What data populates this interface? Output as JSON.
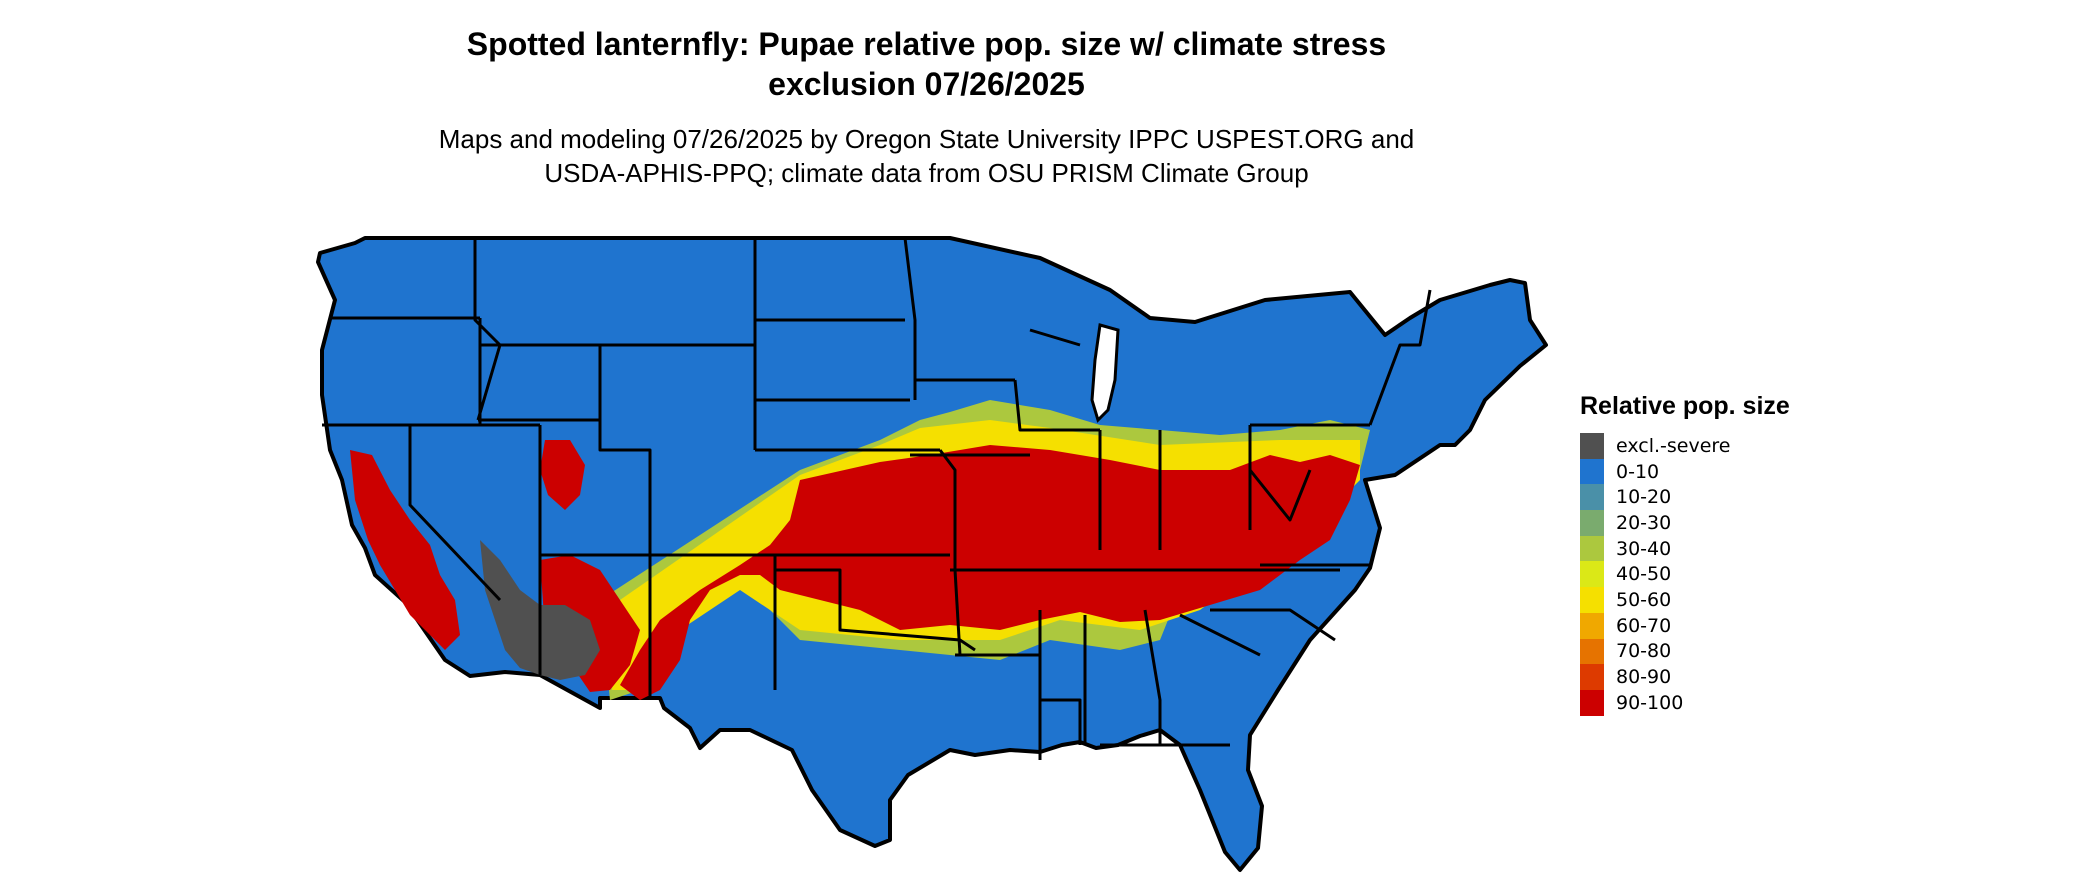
{
  "title_line1": "Spotted lanternfly: Pupae relative pop. size w/ climate stress",
  "title_line2": "exclusion 07/26/2025",
  "subtitle_line1": "Maps and modeling 07/26/2025 by Oregon State University IPPC USPEST.ORG and",
  "subtitle_line2": "USDA-APHIS-PPQ; climate data from OSU PRISM Climate Group",
  "legend": {
    "title": "Relative pop. size",
    "items": [
      {
        "label": "excl.-severe",
        "color": "#505050"
      },
      {
        "label": "0-10",
        "color": "#1f74cf"
      },
      {
        "label": "10-20",
        "color": "#4a90a8"
      },
      {
        "label": "20-30",
        "color": "#7aab6e"
      },
      {
        "label": "30-40",
        "color": "#acc83e"
      },
      {
        "label": "40-50",
        "color": "#dbe817"
      },
      {
        "label": "50-60",
        "color": "#f5e000"
      },
      {
        "label": "60-70",
        "color": "#f0a800"
      },
      {
        "label": "70-80",
        "color": "#e67300"
      },
      {
        "label": "80-90",
        "color": "#dd3a00"
      },
      {
        "label": "90-100",
        "color": "#cc0000"
      }
    ]
  }
}
